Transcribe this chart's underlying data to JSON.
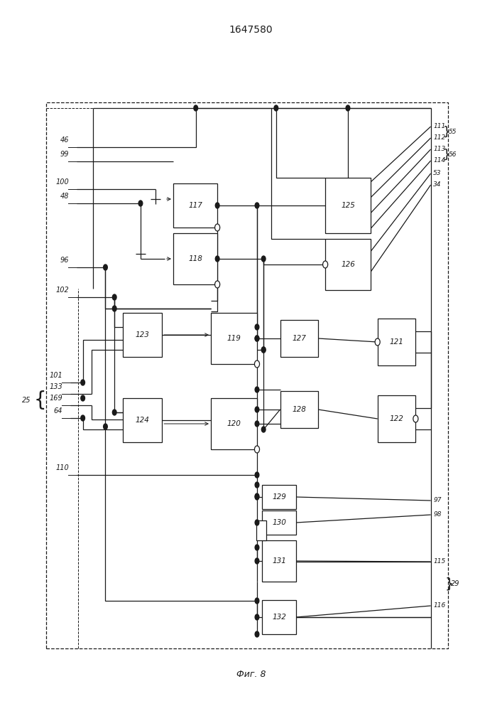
{
  "title": "1647580",
  "caption": "Фиг. 8",
  "blocks": {
    "117": [
      0.345,
      0.68,
      0.088,
      0.062
    ],
    "118": [
      0.345,
      0.6,
      0.088,
      0.072
    ],
    "119": [
      0.42,
      0.488,
      0.092,
      0.072
    ],
    "120": [
      0.42,
      0.368,
      0.092,
      0.072
    ],
    "123": [
      0.245,
      0.498,
      0.078,
      0.062
    ],
    "124": [
      0.245,
      0.378,
      0.078,
      0.062
    ],
    "125": [
      0.648,
      0.672,
      0.09,
      0.078
    ],
    "126": [
      0.648,
      0.592,
      0.09,
      0.072
    ],
    "127": [
      0.558,
      0.498,
      0.076,
      0.052
    ],
    "128": [
      0.558,
      0.398,
      0.076,
      0.052
    ],
    "121": [
      0.752,
      0.486,
      0.076,
      0.066
    ],
    "122": [
      0.752,
      0.378,
      0.076,
      0.066
    ],
    "129": [
      0.522,
      0.284,
      0.068,
      0.034
    ],
    "130": [
      0.522,
      0.248,
      0.068,
      0.034
    ],
    "131": [
      0.522,
      0.182,
      0.068,
      0.058
    ],
    "132": [
      0.522,
      0.108,
      0.068,
      0.048
    ]
  }
}
